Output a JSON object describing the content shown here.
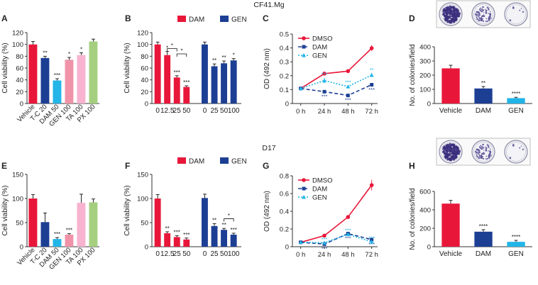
{
  "figure": {
    "rows": [
      {
        "title": "CF41.Mg",
        "panels": [
          "A",
          "B",
          "C",
          "D"
        ]
      },
      {
        "title": "D17",
        "panels": [
          "E",
          "F",
          "G",
          "H"
        ]
      }
    ]
  },
  "colors": {
    "red": "#e8173a",
    "blue": "#1c3f94",
    "cyan": "#22b5e8",
    "gen_light": "#f093a8",
    "ta": "#f7b3cf",
    "px": "#a5cf7f",
    "text": "#222222",
    "axis": "#333333"
  },
  "chart_data": [
    {
      "id": "A",
      "letter": "A",
      "type": "bar",
      "ylabel": "Cell viability (%)",
      "ylim": [
        0,
        120
      ],
      "yticks": [
        0,
        20,
        40,
        60,
        80,
        100,
        120
      ],
      "categories": [
        "Vehicle",
        "T-C 20",
        "DAM 50",
        "GEN 100",
        "TA 100",
        "PX 100"
      ],
      "values": [
        100,
        77,
        39,
        74,
        82,
        105
      ],
      "errors": [
        5,
        3,
        3,
        4,
        4,
        4
      ],
      "colors": [
        "#e8173a",
        "#1c3f94",
        "#22b5e8",
        "#f093a8",
        "#f7b3cf",
        "#a5cf7f"
      ],
      "sig": [
        "",
        "**",
        "***",
        "*",
        "*",
        ""
      ],
      "label_rotate": true
    },
    {
      "id": "B",
      "letter": "B",
      "type": "bar",
      "ylabel": "Cell viability (%)",
      "ylim": [
        0,
        120
      ],
      "yticks": [
        0,
        20,
        40,
        60,
        80,
        100,
        120
      ],
      "categories": [
        "0",
        "12.5",
        "25",
        "50",
        "0",
        "25",
        "50",
        "100"
      ],
      "values": [
        100,
        82,
        44,
        28,
        100,
        63,
        68,
        73
      ],
      "errors": [
        4,
        6,
        3,
        2,
        4,
        4,
        4,
        3
      ],
      "colors": [
        "#e8173a",
        "#e8173a",
        "#e8173a",
        "#e8173a",
        "#1c3f94",
        "#1c3f94",
        "#1c3f94",
        "#1c3f94"
      ],
      "sig": [
        "",
        "*",
        "***",
        "***",
        "",
        "**",
        "**",
        "*"
      ],
      "legend": [
        {
          "name": "DAM",
          "color": "#e8173a"
        },
        {
          "name": "GEN",
          "color": "#1c3f94"
        }
      ],
      "brackets": [
        {
          "from": 1,
          "to": 2,
          "label": "*",
          "value": 93
        },
        {
          "from": 2,
          "to": 3,
          "label": "*",
          "value": 84
        }
      ],
      "group_gap_after": 3
    },
    {
      "id": "C",
      "letter": "C",
      "type": "line",
      "ylabel": "OD (492 nm)",
      "ylim": [
        0,
        0.5
      ],
      "yticks": [
        0,
        0.1,
        0.2,
        0.3,
        0.4,
        0.5
      ],
      "x": [
        "0 h",
        "24 h",
        "48 h",
        "72 h"
      ],
      "series": [
        {
          "name": "DMSO",
          "values": [
            0.108,
            0.215,
            0.233,
            0.398
          ],
          "errors": [
            0.005,
            0.012,
            0.01,
            0.022
          ],
          "color": "#e8173a",
          "dash": "",
          "marker": "circle",
          "sig": [
            "",
            "",
            "",
            ""
          ]
        },
        {
          "name": "DAM",
          "values": [
            0.108,
            0.085,
            0.058,
            0.135
          ],
          "errors": [
            0.004,
            0.005,
            0.004,
            0.008
          ],
          "color": "#1c3f94",
          "dash": "5,3",
          "marker": "square",
          "sig": [
            "",
            "***",
            "***",
            "***"
          ]
        },
        {
          "name": "GEN",
          "values": [
            0.108,
            0.165,
            0.122,
            0.205
          ],
          "errors": [
            0.004,
            0.02,
            0.008,
            0.015
          ],
          "color": "#22b5e8",
          "dash": "2,2",
          "marker": "triangle",
          "sig": [
            "",
            "***",
            "***",
            "**"
          ]
        }
      ]
    },
    {
      "id": "D",
      "letter": "D",
      "type": "bar",
      "ylabel": "No. of colonies/field",
      "ylim": [
        0,
        400
      ],
      "yticks": [
        0,
        100,
        200,
        300,
        400
      ],
      "categories": [
        "Vehicle",
        "DAM",
        "GEN"
      ],
      "values": [
        248,
        106,
        38
      ],
      "errors": [
        22,
        14,
        6
      ],
      "colors": [
        "#e8173a",
        "#1c3f94",
        "#22b5e8"
      ],
      "sig": [
        "",
        "**",
        "****"
      ],
      "dishes": [
        "dense",
        "medium",
        "sparse"
      ]
    },
    {
      "id": "E",
      "letter": "E",
      "type": "bar",
      "ylabel": "Cell viability (%)",
      "ylim": [
        0,
        150
      ],
      "yticks": [
        0,
        50,
        100,
        150
      ],
      "categories": [
        "Vehicle",
        "T-C 20",
        "DAM 50",
        "GEN 100",
        "TA 100",
        "PX 100"
      ],
      "values": [
        100,
        51,
        16,
        25,
        91,
        92
      ],
      "errors": [
        8,
        19,
        3,
        2,
        18,
        7
      ],
      "colors": [
        "#e8173a",
        "#1c3f94",
        "#22b5e8",
        "#f093a8",
        "#f7b3cf",
        "#a5cf7f"
      ],
      "sig": [
        "",
        "",
        "***",
        "***",
        "",
        ""
      ],
      "label_rotate": true
    },
    {
      "id": "F",
      "letter": "F",
      "type": "bar",
      "ylabel": "Cell viability (%)",
      "ylim": [
        0,
        150
      ],
      "yticks": [
        0,
        50,
        100,
        150
      ],
      "categories": [
        "0",
        "12.5",
        "25",
        "50",
        "0",
        "25",
        "50",
        "100"
      ],
      "values": [
        100,
        28,
        20,
        15,
        101,
        43,
        35,
        25
      ],
      "errors": [
        8,
        3,
        3,
        3,
        8,
        5,
        3,
        3
      ],
      "colors": [
        "#e8173a",
        "#e8173a",
        "#e8173a",
        "#e8173a",
        "#1c3f94",
        "#1c3f94",
        "#1c3f94",
        "#1c3f94"
      ],
      "sig": [
        "",
        "**",
        "***",
        "***",
        "",
        "**",
        "**",
        "***"
      ],
      "legend": [
        {
          "name": "DAM",
          "color": "#e8173a"
        },
        {
          "name": "GEN",
          "color": "#1c3f94"
        }
      ],
      "brackets": [
        {
          "from": 6,
          "to": 7,
          "label": "*",
          "value": 58
        }
      ],
      "group_gap_after": 3
    },
    {
      "id": "G",
      "letter": "G",
      "type": "line",
      "ylabel": "OD (492 nm)",
      "ylim": [
        0,
        0.8
      ],
      "yticks": [
        0,
        0.2,
        0.4,
        0.6,
        0.8
      ],
      "x": [
        "0 h",
        "24 h",
        "48 h",
        "72 h"
      ],
      "series": [
        {
          "name": "DMSO",
          "values": [
            0.05,
            0.125,
            0.335,
            0.695
          ],
          "errors": [
            0.004,
            0.006,
            0.008,
            0.06
          ],
          "color": "#e8173a",
          "dash": "",
          "marker": "circle",
          "sig": [
            "",
            "",
            "",
            ""
          ]
        },
        {
          "name": "DAM",
          "values": [
            0.05,
            0.03,
            0.148,
            0.08
          ],
          "errors": [
            0.003,
            0.004,
            0.008,
            0.008
          ],
          "color": "#1c3f94",
          "dash": "5,3",
          "marker": "square",
          "sig": [
            "",
            "***",
            "***",
            "***"
          ]
        },
        {
          "name": "GEN",
          "values": [
            0.05,
            0.045,
            0.14,
            0.055
          ],
          "errors": [
            0.003,
            0.004,
            0.008,
            0.006
          ],
          "color": "#22b5e8",
          "dash": "2,2",
          "marker": "triangle",
          "sig": [
            "",
            "***",
            "***",
            "***"
          ]
        }
      ]
    },
    {
      "id": "H",
      "letter": "H",
      "type": "bar",
      "ylabel": "No. of colonies/field",
      "ylim": [
        0,
        600
      ],
      "yticks": [
        0,
        200,
        400,
        600
      ],
      "categories": [
        "Vehicle",
        "DAM",
        "GEN"
      ],
      "values": [
        468,
        163,
        53
      ],
      "errors": [
        35,
        22,
        16
      ],
      "colors": [
        "#e8173a",
        "#1c3f94",
        "#22b5e8"
      ],
      "sig": [
        "",
        "****",
        "****"
      ],
      "dishes": [
        "dense",
        "medium",
        "sparse"
      ]
    }
  ]
}
